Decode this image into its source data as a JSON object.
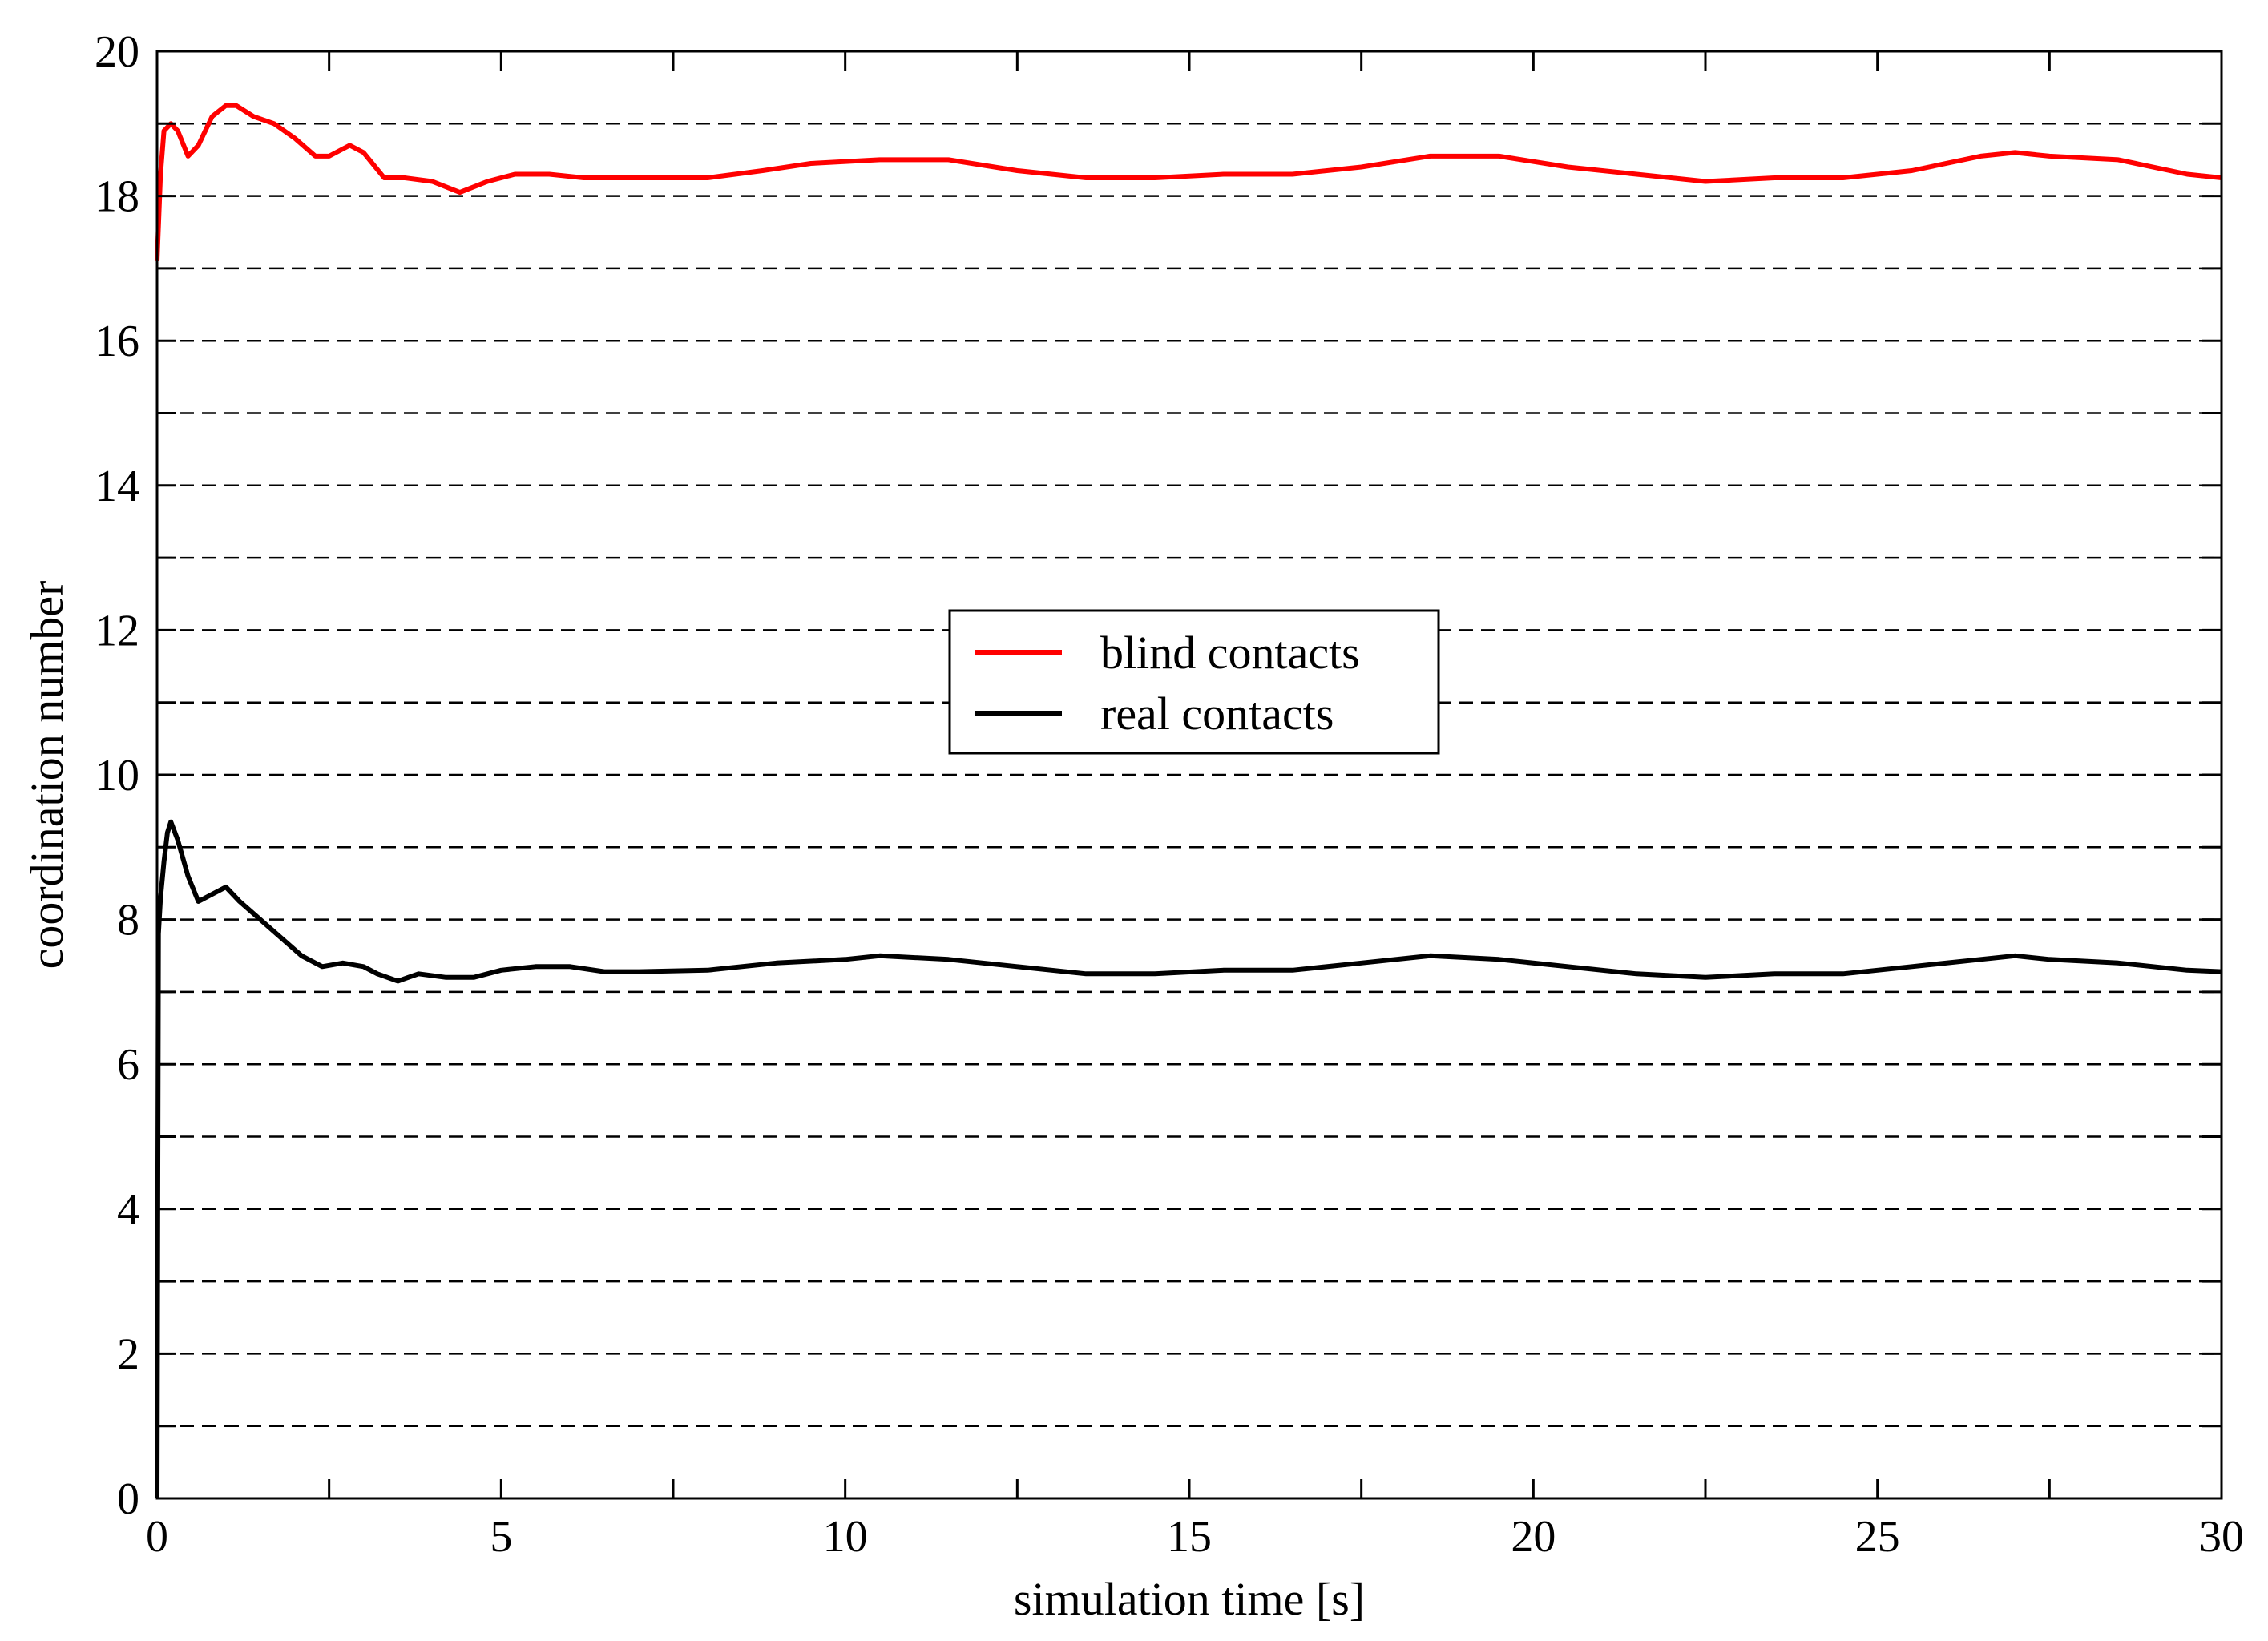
{
  "chart_data": {
    "type": "line",
    "xlabel": "simulation time [s]",
    "ylabel": "coordination number",
    "xlim": [
      0,
      30
    ],
    "ylim": [
      0,
      20
    ],
    "x_ticks": [
      0,
      5,
      10,
      15,
      20,
      25,
      30
    ],
    "y_ticks": [
      0,
      2,
      4,
      6,
      8,
      10,
      12,
      14,
      16,
      18,
      20
    ],
    "grid": "horizontal dashed at every 1 unit",
    "legend_position": "center",
    "series": [
      {
        "name": "blind contacts",
        "color": "#ff0000",
        "x": [
          0,
          0.05,
          0.1,
          0.2,
          0.3,
          0.45,
          0.6,
          0.8,
          1.0,
          1.15,
          1.4,
          1.7,
          2.0,
          2.3,
          2.5,
          2.8,
          3.0,
          3.3,
          3.6,
          4.0,
          4.4,
          4.8,
          5.2,
          5.7,
          6.2,
          6.8,
          7.4,
          8.0,
          8.8,
          9.5,
          10.5,
          11.5,
          12.5,
          13.5,
          14.5,
          15.5,
          16.5,
          17.5,
          18.5,
          19.5,
          20.5,
          21.5,
          22.5,
          23.5,
          24.5,
          25.5,
          26.5,
          27.0,
          27.5,
          28.5,
          29.5,
          30.0
        ],
        "y": [
          17.1,
          18.3,
          18.9,
          19.0,
          18.9,
          18.55,
          18.7,
          19.1,
          19.25,
          19.25,
          19.1,
          19.0,
          18.8,
          18.55,
          18.55,
          18.7,
          18.6,
          18.25,
          18.25,
          18.2,
          18.05,
          18.2,
          18.3,
          18.3,
          18.25,
          18.25,
          18.25,
          18.25,
          18.35,
          18.45,
          18.5,
          18.5,
          18.35,
          18.25,
          18.25,
          18.3,
          18.3,
          18.4,
          18.55,
          18.55,
          18.4,
          18.3,
          18.2,
          18.25,
          18.25,
          18.35,
          18.55,
          18.6,
          18.55,
          18.5,
          18.3,
          18.25
        ]
      },
      {
        "name": "real contacts",
        "color": "#000000",
        "x": [
          0,
          0.02,
          0.05,
          0.1,
          0.15,
          0.2,
          0.3,
          0.45,
          0.6,
          0.8,
          1.0,
          1.2,
          1.5,
          1.8,
          2.1,
          2.4,
          2.7,
          3.0,
          3.2,
          3.5,
          3.8,
          4.2,
          4.6,
          5.0,
          5.5,
          6.0,
          6.5,
          7.0,
          8.0,
          9.0,
          10.0,
          10.5,
          11.5,
          12.5,
          13.5,
          14.5,
          15.5,
          16.5,
          17.5,
          18.5,
          19.5,
          20.5,
          21.5,
          22.5,
          23.5,
          24.5,
          25.5,
          26.5,
          27.0,
          27.5,
          28.5,
          29.5,
          30.0
        ],
        "y": [
          0,
          7.8,
          8.3,
          8.8,
          9.2,
          9.35,
          9.1,
          8.6,
          8.25,
          8.35,
          8.45,
          8.25,
          8.0,
          7.75,
          7.5,
          7.35,
          7.4,
          7.35,
          7.25,
          7.15,
          7.25,
          7.2,
          7.2,
          7.3,
          7.35,
          7.35,
          7.28,
          7.28,
          7.3,
          7.4,
          7.45,
          7.5,
          7.45,
          7.35,
          7.25,
          7.25,
          7.3,
          7.3,
          7.4,
          7.5,
          7.45,
          7.35,
          7.25,
          7.2,
          7.25,
          7.25,
          7.35,
          7.45,
          7.5,
          7.45,
          7.4,
          7.3,
          7.28
        ]
      }
    ]
  }
}
